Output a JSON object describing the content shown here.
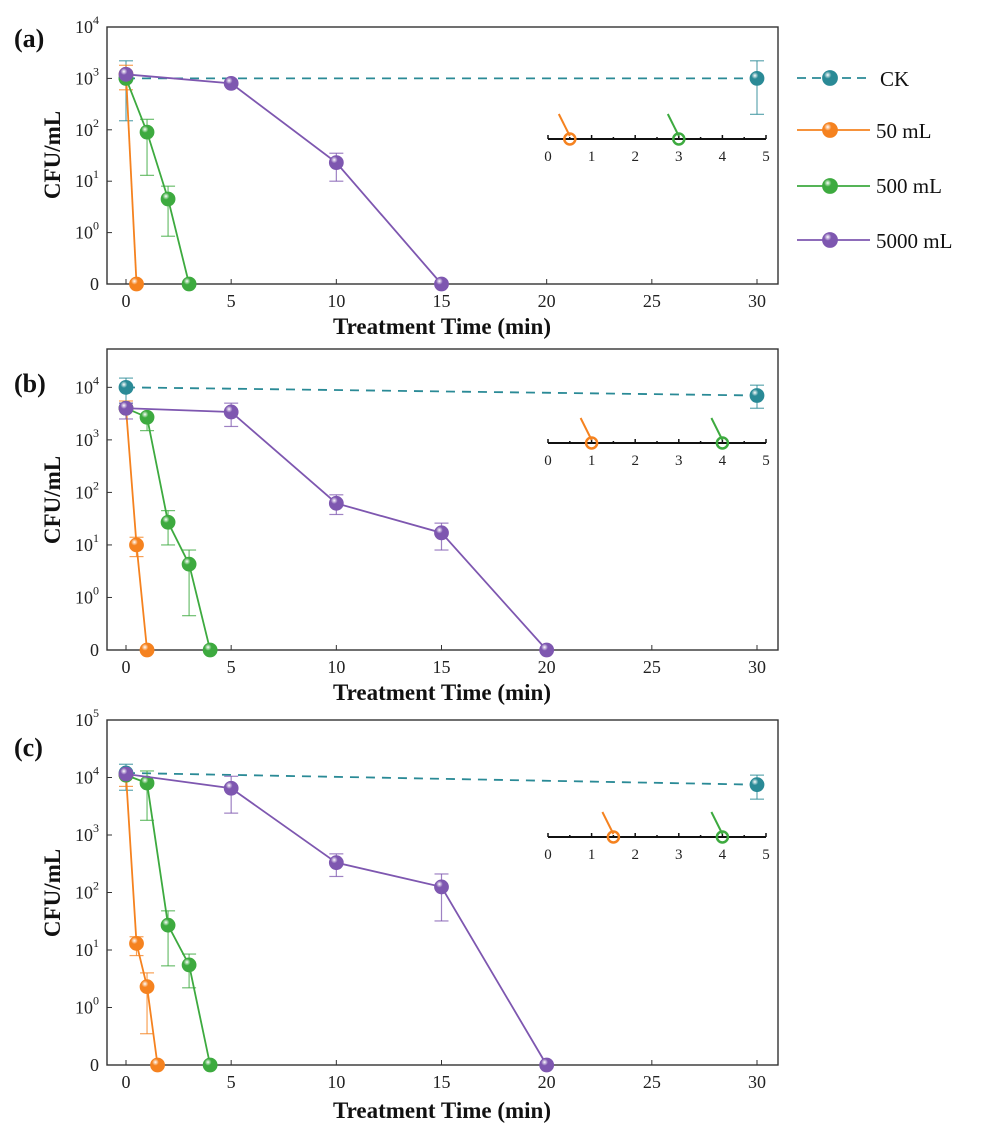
{
  "colors": {
    "CK": "#2a8a96",
    "50 mL": "#f5821f",
    "500 mL": "#3daa3f",
    "5000 mL": "#7e57b0"
  },
  "legend": {
    "position": "right of panel (a)",
    "items": [
      {
        "name": "CK",
        "style": "dashed"
      },
      {
        "name": "50 mL",
        "style": "solid"
      },
      {
        "name": "500 mL",
        "style": "solid"
      },
      {
        "name": "5000 mL",
        "style": "solid"
      }
    ]
  },
  "chart_data": [
    {
      "type": "line",
      "panel_label": "(a)",
      "xlabel": "Treatment Time (min)",
      "ylabel": "CFU/mL",
      "yscale": "log (0 shown one decade below 10^0)",
      "xlim": [
        -1,
        31
      ],
      "xticks": [
        "0",
        "5",
        "10",
        "15",
        "20",
        "25",
        "30"
      ],
      "ylim_log": [
        -1,
        4
      ],
      "yticks": [
        "0",
        "10^0",
        "10^1",
        "10^2",
        "10^3",
        "10^4"
      ],
      "series": [
        {
          "name": "CK",
          "points": [
            [
              0,
              1000,
              150,
              2200
            ],
            [
              30,
              1000,
              200,
              2200
            ]
          ]
        },
        {
          "name": "50 mL",
          "points": [
            [
              0,
              1200,
              600,
              1800
            ],
            [
              0.5,
              0,
              null,
              null
            ]
          ]
        },
        {
          "name": "500 mL",
          "points": [
            [
              0,
              1000,
              null,
              null
            ],
            [
              1,
              90,
              13,
              160
            ],
            [
              2,
              4.5,
              0.85,
              8
            ],
            [
              3,
              0,
              null,
              null
            ]
          ]
        },
        {
          "name": "5000 mL",
          "points": [
            [
              0,
              1200,
              null,
              null
            ],
            [
              5,
              800,
              null,
              null
            ],
            [
              10,
              23,
              10,
              35
            ],
            [
              15,
              0,
              null,
              null
            ]
          ]
        }
      ],
      "inset": {
        "xticks": [
          "0",
          "1",
          "2",
          "3",
          "4",
          "5"
        ],
        "markers": [
          {
            "series": "50 mL",
            "x": 0.5
          },
          {
            "series": "500 mL",
            "x": 3
          }
        ]
      }
    },
    {
      "type": "line",
      "panel_label": "(b)",
      "xlabel": "Treatment Time (min)",
      "ylabel": "CFU/mL",
      "yscale": "log (0 shown one decade below 10^0)",
      "xlim": [
        -1,
        31
      ],
      "xticks": [
        "0",
        "5",
        "10",
        "15",
        "20",
        "25",
        "30"
      ],
      "ylim_log": [
        -1,
        4.73
      ],
      "yticks": [
        "0",
        "10^0",
        "10^1",
        "10^2",
        "10^3",
        "10^4"
      ],
      "series": [
        {
          "name": "CK",
          "points": [
            [
              0,
              10000,
              5000,
              15000
            ],
            [
              30,
              7000,
              4000,
              11000
            ]
          ]
        },
        {
          "name": "50 mL",
          "points": [
            [
              0,
              4000,
              null,
              5500
            ],
            [
              0.5,
              10,
              6,
              14
            ],
            [
              1,
              0,
              null,
              null
            ]
          ]
        },
        {
          "name": "500 mL",
          "points": [
            [
              0,
              4000,
              null,
              null
            ],
            [
              1,
              2700,
              1500,
              null
            ],
            [
              2,
              27,
              10,
              45
            ],
            [
              3,
              4.3,
              0.45,
              8
            ],
            [
              4,
              0,
              null,
              null
            ]
          ]
        },
        {
          "name": "5000 mL",
          "points": [
            [
              0,
              4000,
              2500,
              5000
            ],
            [
              5,
              3400,
              1800,
              5000
            ],
            [
              10,
              62,
              38,
              90
            ],
            [
              15,
              17,
              8,
              26
            ],
            [
              20,
              0,
              null,
              null
            ]
          ]
        }
      ],
      "inset": {
        "xticks": [
          "0",
          "1",
          "2",
          "3",
          "4",
          "5"
        ],
        "markers": [
          {
            "series": "50 mL",
            "x": 1
          },
          {
            "series": "500 mL",
            "x": 4
          }
        ]
      }
    },
    {
      "type": "line",
      "panel_label": "(c)",
      "xlabel": "Treatment Time (min)",
      "ylabel": "CFU/mL",
      "yscale": "log (0 shown one decade below 10^0)",
      "xlim": [
        -1,
        31
      ],
      "xticks": [
        "0",
        "5",
        "10",
        "15",
        "20",
        "25",
        "30"
      ],
      "ylim_log": [
        -1,
        5
      ],
      "yticks": [
        "0",
        "10^0",
        "10^1",
        "10^2",
        "10^3",
        "10^4",
        "10^5"
      ],
      "series": [
        {
          "name": "CK",
          "points": [
            [
              0,
              12000,
              6000,
              17000
            ],
            [
              30,
              7500,
              4200,
              11000
            ]
          ]
        },
        {
          "name": "50 mL",
          "points": [
            [
              0,
              11000,
              7000,
              null
            ],
            [
              0.5,
              13,
              8,
              17
            ],
            [
              1,
              2.3,
              0.35,
              4
            ],
            [
              1.5,
              0,
              null,
              null
            ]
          ]
        },
        {
          "name": "500 mL",
          "points": [
            [
              0,
              11000,
              null,
              null
            ],
            [
              1,
              8000,
              1800,
              13000
            ],
            [
              2,
              27,
              5.3,
              48
            ],
            [
              3,
              5.5,
              2.2,
              8.5
            ],
            [
              4,
              0,
              null,
              null
            ]
          ]
        },
        {
          "name": "5000 mL",
          "points": [
            [
              0,
              11500,
              null,
              null
            ],
            [
              5,
              6500,
              2400,
              10500
            ],
            [
              10,
              330,
              190,
              470
            ],
            [
              15,
              125,
              32,
              210
            ],
            [
              20,
              0,
              null,
              null
            ]
          ]
        }
      ],
      "inset": {
        "xticks": [
          "0",
          "1",
          "2",
          "3",
          "4",
          "5"
        ],
        "markers": [
          {
            "series": "50 mL",
            "x": 1.5
          },
          {
            "series": "500 mL",
            "x": 4
          }
        ]
      }
    }
  ]
}
